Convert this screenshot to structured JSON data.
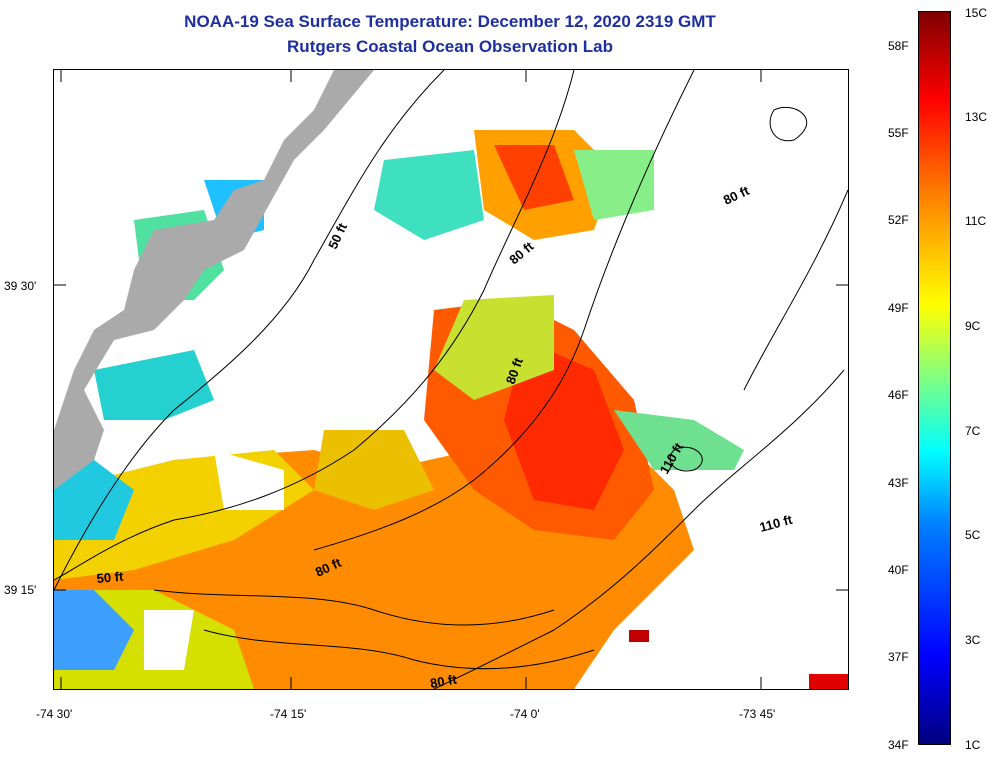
{
  "title": {
    "line1": "NOAA-19 Sea Surface Temperature:  December 12, 2020 2319 GMT",
    "line2": "Rutgers Coastal Ocean Observation Lab"
  },
  "axes": {
    "lat_labels": [
      "39 30'",
      "39 15'"
    ],
    "lon_labels": [
      "-74 30'",
      "-74 15'",
      "-74 0'",
      "-73 45'"
    ]
  },
  "contours": {
    "labels": [
      "50 ft",
      "80 ft",
      "80 ft",
      "80 ft",
      "80 ft",
      "50 ft",
      "80 ft",
      "110 ft",
      "110 ft"
    ]
  },
  "colorbar": {
    "celsius_labels": [
      "15C",
      "13C",
      "11C",
      "9C",
      "7C",
      "5C",
      "3C",
      "1C"
    ],
    "fahrenheit_labels": [
      "58F",
      "55F",
      "52F",
      "49F",
      "46F",
      "43F",
      "40F",
      "37F",
      "34F"
    ],
    "colors": [
      "#00007f",
      "#0000ff",
      "#0080ff",
      "#00ffff",
      "#80ff80",
      "#ffff00",
      "#ff8000",
      "#ff0000",
      "#7f0000"
    ]
  },
  "colors": {
    "land": "#aaaaaa",
    "title": "#1f2f9f"
  }
}
